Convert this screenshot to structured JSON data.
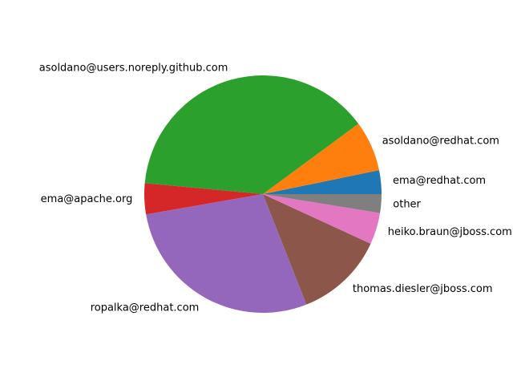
{
  "chart_data": {
    "type": "pie",
    "title": "",
    "start_angle_deg": 0,
    "direction": "counterclockwise",
    "slices": [
      {
        "label": "ema@redhat.com",
        "value": 3.3,
        "color": "#1f77b4"
      },
      {
        "label": "asoldano@redhat.com",
        "value": 7.0,
        "color": "#ff7f0e"
      },
      {
        "label": "asoldano@users.noreply.github.com",
        "value": 39.2,
        "color": "#2ca02c"
      },
      {
        "label": "ema@apache.org",
        "value": 4.3,
        "color": "#d62728"
      },
      {
        "label": "ropalka@redhat.com",
        "value": 28.8,
        "color": "#9467bd"
      },
      {
        "label": "thomas.diesler@jboss.com",
        "value": 12.4,
        "color": "#8c564b"
      },
      {
        "label": "heiko.braun@jboss.com",
        "value": 4.4,
        "color": "#e377c2"
      },
      {
        "label": "other",
        "value": 2.6,
        "color": "#7f7f7f"
      }
    ]
  }
}
